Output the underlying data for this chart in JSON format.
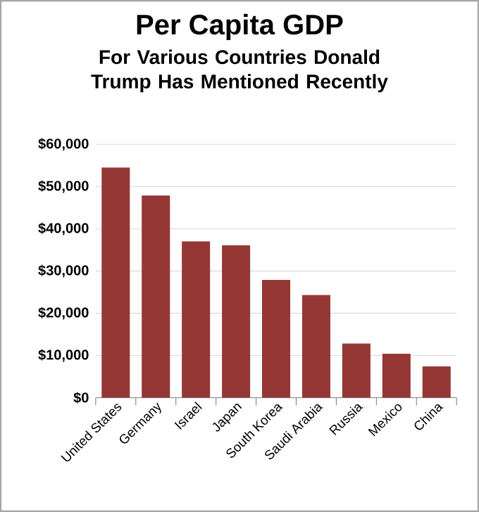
{
  "chart_data": {
    "type": "bar",
    "title": "Per Capita GDP",
    "subtitle": "For Various Countries Donald Trump Has Mentioned Recently",
    "categories": [
      "United States",
      "Germany",
      "Israel",
      "Japan",
      "South Korea",
      "Saudi Arabia",
      "Russia",
      "Mexico",
      "China"
    ],
    "values": [
      54500,
      47900,
      37000,
      36100,
      27900,
      24300,
      12800,
      10400,
      7400
    ],
    "color": "#953735",
    "grid": "y",
    "ylim": [
      0,
      60000
    ],
    "yticks": [
      {
        "value": 0,
        "label": "$0"
      },
      {
        "value": 10000,
        "label": "$10,000"
      },
      {
        "value": 20000,
        "label": "$20,000"
      },
      {
        "value": 30000,
        "label": "$30,000"
      },
      {
        "value": 40000,
        "label": "$40,000"
      },
      {
        "value": 50000,
        "label": "$50,000"
      },
      {
        "value": 60000,
        "label": "$60,000"
      }
    ]
  }
}
